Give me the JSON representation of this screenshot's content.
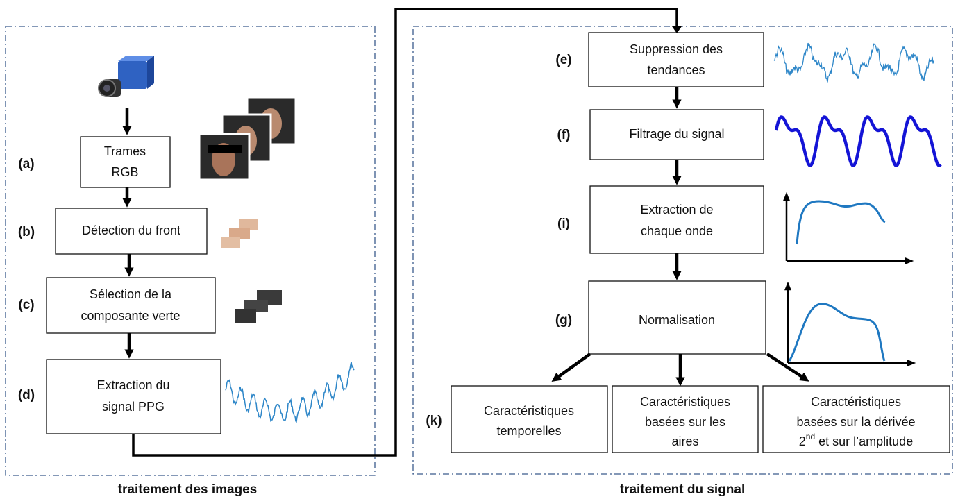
{
  "panels": [
    {
      "title": "traitement des images",
      "steps": [
        {
          "label": "(a)",
          "lines": [
            "Trames",
            "RGB"
          ]
        },
        {
          "label": "(b)",
          "lines": [
            "Détection du front"
          ]
        },
        {
          "label": "(c)",
          "lines": [
            "Sélection de la",
            "composante verte"
          ]
        },
        {
          "label": "(d)",
          "lines": [
            "Extraction du",
            "signal PPG"
          ]
        }
      ]
    },
    {
      "title": "traitement du signal",
      "steps": [
        {
          "label": "(e)",
          "lines": [
            "Suppression des",
            "tendances"
          ]
        },
        {
          "label": "(f)",
          "lines": [
            "Filtrage du signal"
          ]
        },
        {
          "label": "(i)",
          "lines": [
            "Extraction de",
            "chaque onde"
          ]
        },
        {
          "label": "(g)",
          "lines": [
            "Normalisation"
          ]
        }
      ],
      "features": {
        "label": "(k)",
        "boxes": [
          {
            "lines": [
              "Caractéristiques",
              "temporelles"
            ]
          },
          {
            "lines": [
              "Caractéristiques",
              "basées sur les",
              "aires"
            ]
          },
          {
            "lines": [
              "Caractéristiques",
              "basées sur la dérivée"
            ],
            "last_line": {
              "base": "2",
              "sup": "nd",
              "rest": " et sur l’amplitude"
            }
          }
        ]
      }
    }
  ]
}
